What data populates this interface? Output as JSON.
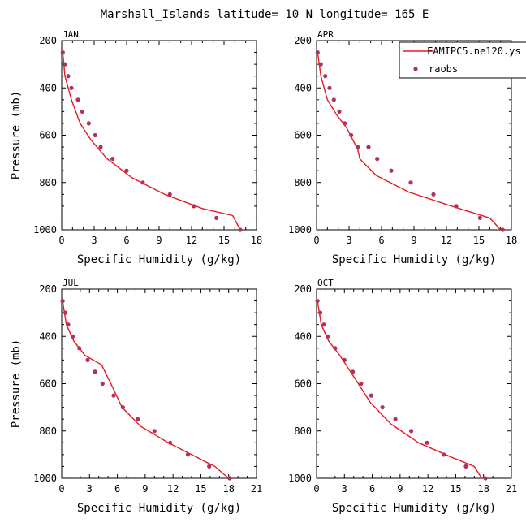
{
  "figure": {
    "title": "Marshall_Islands  latitude= 10 N longitude= 165 E"
  },
  "legend": {
    "model_label": "FAMIPC5.ne120.ys",
    "obs_label": "raobs",
    "model_color": "#e8191f",
    "obs_color": "#b03060"
  },
  "chart_data": [
    {
      "type": "line",
      "panel": "JAN",
      "xlabel": "Specific Humidity (g/kg)",
      "ylabel": "Pressure (mb)",
      "xlim": [
        0,
        18
      ],
      "ylim": [
        1000,
        200
      ],
      "y_inverted": true,
      "xticks": [
        0,
        3,
        6,
        9,
        12,
        15,
        18
      ],
      "yticks": [
        200,
        400,
        600,
        800,
        1000
      ],
      "series": [
        {
          "name": "FAMIPC5.ne120.ys",
          "style": "line",
          "x": [
            0.1,
            0.3,
            0.9,
            1.7,
            2.7,
            4.2,
            6.5,
            9.5,
            13.0,
            15.8,
            16.5
          ],
          "y": [
            250,
            350,
            450,
            550,
            620,
            700,
            780,
            850,
            910,
            940,
            1000
          ]
        },
        {
          "name": "raobs",
          "style": "markers",
          "x": [
            0.1,
            0.3,
            0.6,
            0.9,
            1.5,
            1.9,
            2.5,
            3.1,
            3.6,
            4.7,
            6.0,
            7.5,
            10.0,
            12.2,
            14.3,
            16.5
          ],
          "y": [
            250,
            300,
            350,
            400,
            450,
            500,
            550,
            600,
            650,
            700,
            750,
            800,
            850,
            900,
            950,
            1000
          ]
        }
      ]
    },
    {
      "type": "line",
      "panel": "APR",
      "xlabel": "Specific Humidity (g/kg)",
      "ylabel": "",
      "xlim": [
        0,
        18
      ],
      "ylim": [
        1000,
        200
      ],
      "y_inverted": true,
      "xticks": [
        0,
        3,
        6,
        9,
        12,
        15,
        18
      ],
      "yticks": [
        200,
        400,
        600,
        800,
        1000
      ],
      "series": [
        {
          "name": "FAMIPC5.ne120.ys",
          "style": "line",
          "x": [
            0.1,
            0.4,
            1.0,
            1.8,
            2.8,
            3.8,
            4.0,
            5.5,
            8.5,
            12.5,
            16.0,
            17.0
          ],
          "y": [
            250,
            350,
            450,
            510,
            570,
            660,
            700,
            770,
            840,
            900,
            950,
            1000
          ]
        },
        {
          "name": "raobs",
          "style": "markers",
          "x": [
            0.1,
            0.4,
            0.8,
            1.2,
            1.6,
            2.1,
            2.6,
            3.2,
            3.8,
            4.8,
            5.6,
            6.9,
            8.7,
            10.8,
            12.9,
            15.1,
            17.2
          ],
          "y": [
            250,
            300,
            350,
            400,
            450,
            500,
            550,
            600,
            650,
            650,
            700,
            750,
            800,
            850,
            900,
            950,
            1000
          ]
        }
      ]
    },
    {
      "type": "line",
      "panel": "JUL",
      "xlabel": "Specific Humidity (g/kg)",
      "ylabel": "Pressure (mb)",
      "xlim": [
        0,
        21
      ],
      "ylim": [
        1000,
        200
      ],
      "y_inverted": true,
      "xticks": [
        0,
        3,
        6,
        9,
        12,
        15,
        18,
        21
      ],
      "yticks": [
        200,
        400,
        600,
        800,
        1000
      ],
      "series": [
        {
          "name": "FAMIPC5.ne120.ys",
          "style": "line",
          "x": [
            0.1,
            0.5,
            1.3,
            2.5,
            4.3,
            5.3,
            6.5,
            8.5,
            11.5,
            14.5,
            16.5,
            18.0
          ],
          "y": [
            250,
            350,
            420,
            480,
            520,
            600,
            700,
            780,
            850,
            910,
            950,
            1000
          ]
        },
        {
          "name": "raobs",
          "style": "markers",
          "x": [
            0.1,
            0.4,
            0.7,
            1.2,
            1.9,
            2.8,
            3.6,
            4.4,
            5.6,
            6.6,
            8.2,
            10.0,
            11.7,
            13.6,
            15.9,
            18.1
          ],
          "y": [
            250,
            300,
            350,
            400,
            450,
            500,
            550,
            600,
            650,
            700,
            750,
            800,
            850,
            900,
            950,
            1000
          ]
        }
      ]
    },
    {
      "type": "line",
      "panel": "OCT",
      "xlabel": "Specific Humidity (g/kg)",
      "ylabel": "",
      "xlim": [
        0,
        21
      ],
      "ylim": [
        1000,
        200
      ],
      "y_inverted": true,
      "xticks": [
        0,
        3,
        6,
        9,
        12,
        15,
        18,
        21
      ],
      "yticks": [
        200,
        400,
        600,
        800,
        1000
      ],
      "series": [
        {
          "name": "FAMIPC5.ne120.ys",
          "style": "line",
          "x": [
            0.1,
            0.5,
            1.3,
            2.5,
            3.5,
            4.5,
            5.8,
            8.0,
            11.0,
            14.5,
            17.0,
            17.8
          ],
          "y": [
            250,
            350,
            420,
            480,
            540,
            600,
            680,
            770,
            850,
            910,
            950,
            1000
          ]
        },
        {
          "name": "raobs",
          "style": "markers",
          "x": [
            0.1,
            0.4,
            0.8,
            1.2,
            2.0,
            3.0,
            3.9,
            4.8,
            5.9,
            7.1,
            8.5,
            10.2,
            11.9,
            13.7,
            16.1,
            18.2
          ],
          "y": [
            250,
            300,
            350,
            400,
            450,
            500,
            550,
            600,
            650,
            700,
            750,
            800,
            850,
            900,
            950,
            1000
          ]
        }
      ]
    }
  ]
}
